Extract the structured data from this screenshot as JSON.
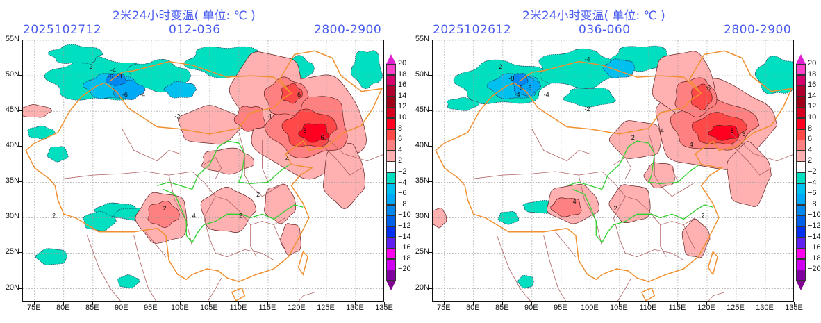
{
  "panels": [
    {
      "title": "2米24小时变温( 单位: ℃ )",
      "init_time": "2025102712",
      "forecast_range": "012-036",
      "valid_range": "2800-2900"
    },
    {
      "title": "2米24小时变温( 单位: ℃ )",
      "init_time": "2025102612",
      "forecast_range": "036-060",
      "valid_range": "2800-2900"
    }
  ],
  "axes": {
    "lat_labels": [
      "55N",
      "50N",
      "45N",
      "40N",
      "35N",
      "30N",
      "25N",
      "20N"
    ],
    "lat_values": [
      55,
      50,
      45,
      40,
      35,
      30,
      25,
      20
    ],
    "lon_labels": [
      "75E",
      "80E",
      "85E",
      "90E",
      "95E",
      "100E",
      "105E",
      "110E",
      "115E",
      "120E",
      "125E",
      "130E",
      "135E"
    ],
    "lon_values": [
      75,
      80,
      85,
      90,
      95,
      100,
      105,
      110,
      115,
      120,
      125,
      130,
      135
    ],
    "lon_range": [
      73,
      135
    ],
    "lat_range": [
      18,
      55
    ]
  },
  "colorbar": {
    "labels": [
      "20",
      "18",
      "16",
      "14",
      "12",
      "10",
      "8",
      "6",
      "4",
      "2",
      "−2",
      "−4",
      "−6",
      "−8",
      "−10",
      "−12",
      "−14",
      "−16",
      "−18",
      "−20"
    ],
    "colors": [
      "#ff40c8",
      "#d8006e",
      "#b00030",
      "#a00018",
      "#d80020",
      "#ff0020",
      "#ff4848",
      "#ff8080",
      "#ffb0b0",
      "#ffffff",
      "#00e0c0",
      "#00c0f0",
      "#00a8f8",
      "#0088f0",
      "#0060e8",
      "#0030f0",
      "#6020f0",
      "#ff00f0",
      "#d000f0",
      "#8000a0"
    ],
    "top_arrow_color": "#e020d0",
    "bottom_arrow_color": "#800090"
  },
  "colors": {
    "title_text": "#4a5cf0",
    "border_country": "#f09030",
    "border_province": "#b06060",
    "river": "#30d030",
    "grid": "#999999"
  },
  "contour_labels": {
    "left": [
      "-2",
      "-4",
      "-6",
      "-8",
      "-6",
      "-4",
      "-2",
      "2",
      "4",
      "6",
      "8",
      "6",
      "4",
      "2",
      "2",
      "4",
      "2"
    ],
    "right": [
      "-2",
      "-4",
      "-8",
      "-6",
      "-6",
      "-4",
      "-4",
      "-2",
      "2",
      "4",
      "6",
      "8",
      "6",
      "4",
      "2",
      "4",
      "2"
    ]
  }
}
